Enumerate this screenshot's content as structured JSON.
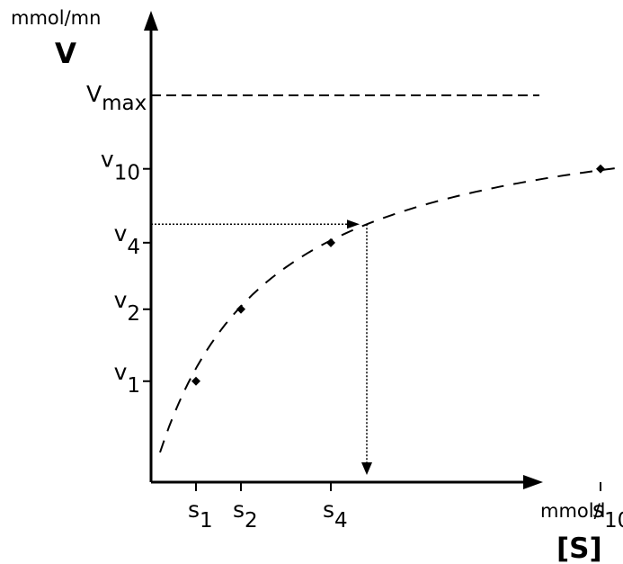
{
  "chart_data": {
    "type": "scatter",
    "title": "",
    "y_unit": "mmol/mn",
    "y_symbol": "V",
    "x_unit": "mmol/l",
    "x_symbol": "[S]",
    "vmax_label": {
      "main": "V",
      "sub": "max"
    },
    "vmax": 1,
    "y_ticks": [
      {
        "main": "v",
        "sub": "1",
        "value": 0.261
      },
      {
        "main": "v",
        "sub": "2",
        "value": 0.447
      },
      {
        "main": "v",
        "sub": "4",
        "value": 0.619
      },
      {
        "main": "v",
        "sub": "10",
        "value": 0.81
      }
    ],
    "x_ticks": [
      {
        "main": "s",
        "sub": "1",
        "value": 0.5
      },
      {
        "main": "s",
        "sub": "2",
        "value": 1
      },
      {
        "main": "s",
        "sub": "4",
        "value": 2
      },
      {
        "main": "s",
        "sub": "10",
        "value": 5
      }
    ],
    "points": [
      {
        "x": 0.5,
        "y": 0.261
      },
      {
        "x": 1,
        "y": 0.447
      },
      {
        "x": 2,
        "y": 0.619
      },
      {
        "x": 5,
        "y": 0.81
      }
    ],
    "curve": "michaelis-menten",
    "km": 1.2,
    "curve_x_range": [
      0.1,
      6.3
    ],
    "readout": {
      "x": 2.4,
      "y": 0.667
    },
    "xlim": [
      0,
      6.5
    ],
    "ylim": [
      0,
      1.35
    ]
  }
}
